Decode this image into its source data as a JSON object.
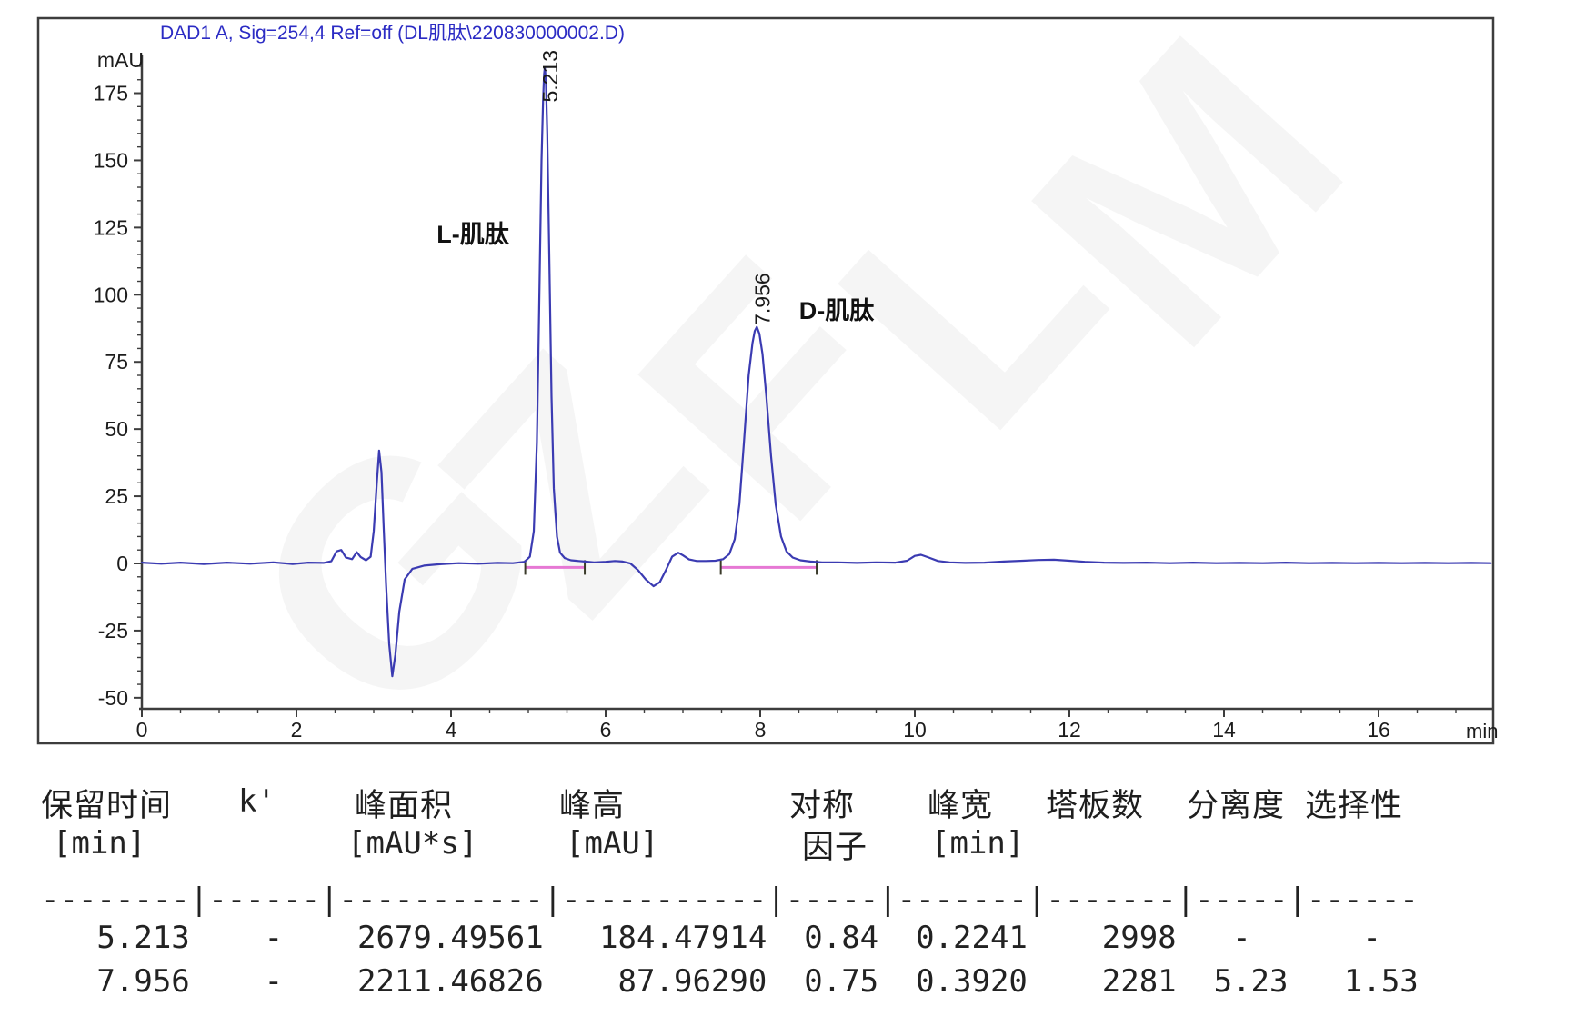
{
  "chart": {
    "title": "DAD1 A, Sig=254,4 Ref=off (DL肌肽\\220830000002.D)",
    "y_axis_unit": "mAU",
    "x_axis_unit": "min",
    "title_color": "#2b2bc4",
    "curve_color": "#3b3bb2",
    "integration_color": "#e678d4",
    "axis_color": "#3d3d3d"
  },
  "chart_data": {
    "type": "line",
    "title": "DAD1 A, Sig=254,4 Ref=off (DL肌肽\\220830000002.D)",
    "xlabel": "min",
    "ylabel": "mAU",
    "xlim": [
      0,
      17.5
    ],
    "ylim": [
      -54,
      189
    ],
    "x_ticks": [
      0,
      2,
      4,
      6,
      8,
      10,
      12,
      14,
      16
    ],
    "y_ticks": [
      175,
      150,
      125,
      100,
      75,
      50,
      25,
      0,
      -25,
      -50
    ],
    "grid": false,
    "legend_position": "none",
    "peaks": [
      {
        "rt": 5.213,
        "rt_label": "5.213",
        "name": "L-肌肽",
        "height": 184.47914,
        "area": 2679.49561
      },
      {
        "rt": 7.956,
        "rt_label": "7.956",
        "name": "D-肌肽",
        "height": 87.9629,
        "area": 2211.46826
      }
    ],
    "integration": {
      "segments": [
        [
          4.96,
          5.73
        ],
        [
          7.49,
          8.73
        ]
      ],
      "baseline_mAU": -1.5
    },
    "series": [
      {
        "name": "DAD1 A",
        "points": [
          [
            0,
            0.3
          ],
          [
            0.25,
            -0.1
          ],
          [
            0.5,
            0.3
          ],
          [
            0.8,
            -0.2
          ],
          [
            1.1,
            0.3
          ],
          [
            1.4,
            -0.1
          ],
          [
            1.7,
            0.4
          ],
          [
            1.95,
            -0.2
          ],
          [
            2.15,
            0.3
          ],
          [
            2.35,
            0.2
          ],
          [
            2.45,
            0.8
          ],
          [
            2.52,
            4.5
          ],
          [
            2.58,
            5
          ],
          [
            2.64,
            2.2
          ],
          [
            2.72,
            1.6
          ],
          [
            2.78,
            4.2
          ],
          [
            2.83,
            2.4
          ],
          [
            2.9,
            1.2
          ],
          [
            2.96,
            2.5
          ],
          [
            3.0,
            12
          ],
          [
            3.04,
            30
          ],
          [
            3.07,
            42
          ],
          [
            3.1,
            34
          ],
          [
            3.13,
            12
          ],
          [
            3.16,
            -8
          ],
          [
            3.2,
            -30
          ],
          [
            3.24,
            -42
          ],
          [
            3.28,
            -34
          ],
          [
            3.33,
            -18
          ],
          [
            3.4,
            -6
          ],
          [
            3.5,
            -2
          ],
          [
            3.65,
            -0.8
          ],
          [
            3.85,
            -0.3
          ],
          [
            4.1,
            0.1
          ],
          [
            4.35,
            -0.1
          ],
          [
            4.6,
            0.2
          ],
          [
            4.8,
            0.1
          ],
          [
            4.95,
            0.6
          ],
          [
            5.02,
            2.5
          ],
          [
            5.07,
            12
          ],
          [
            5.11,
            45
          ],
          [
            5.14,
            95
          ],
          [
            5.17,
            150
          ],
          [
            5.19,
            172
          ],
          [
            5.203,
            182
          ],
          [
            5.213,
            184.5
          ],
          [
            5.227,
            180
          ],
          [
            5.245,
            160
          ],
          [
            5.27,
            115
          ],
          [
            5.3,
            62
          ],
          [
            5.33,
            28
          ],
          [
            5.37,
            10
          ],
          [
            5.41,
            4
          ],
          [
            5.47,
            2
          ],
          [
            5.55,
            1.2
          ],
          [
            5.65,
            0.9
          ],
          [
            5.73,
            0.7
          ],
          [
            5.85,
            0.4
          ],
          [
            6.0,
            0.6
          ],
          [
            6.12,
            0.9
          ],
          [
            6.22,
            0.7
          ],
          [
            6.32,
            0
          ],
          [
            6.42,
            -2.5
          ],
          [
            6.52,
            -6
          ],
          [
            6.62,
            -8.5
          ],
          [
            6.7,
            -7
          ],
          [
            6.78,
            -2.5
          ],
          [
            6.86,
            2.5
          ],
          [
            6.94,
            4
          ],
          [
            7.0,
            3
          ],
          [
            7.08,
            1.5
          ],
          [
            7.18,
            0.9
          ],
          [
            7.3,
            0.9
          ],
          [
            7.42,
            1
          ],
          [
            7.52,
            1.6
          ],
          [
            7.6,
            3.5
          ],
          [
            7.67,
            9
          ],
          [
            7.73,
            22
          ],
          [
            7.79,
            45
          ],
          [
            7.85,
            70
          ],
          [
            7.9,
            82
          ],
          [
            7.93,
            86.5
          ],
          [
            7.956,
            88
          ],
          [
            7.99,
            85.5
          ],
          [
            8.03,
            78
          ],
          [
            8.08,
            62
          ],
          [
            8.14,
            40
          ],
          [
            8.2,
            22
          ],
          [
            8.27,
            10
          ],
          [
            8.34,
            4.5
          ],
          [
            8.42,
            2.2
          ],
          [
            8.52,
            1.2
          ],
          [
            8.65,
            0.7
          ],
          [
            8.8,
            0.4
          ],
          [
            9.0,
            0.4
          ],
          [
            9.25,
            0.2
          ],
          [
            9.5,
            0.4
          ],
          [
            9.75,
            0.3
          ],
          [
            9.9,
            1
          ],
          [
            10.0,
            2.8
          ],
          [
            10.08,
            3.2
          ],
          [
            10.18,
            2.2
          ],
          [
            10.3,
            0.9
          ],
          [
            10.45,
            0.4
          ],
          [
            10.65,
            0.2
          ],
          [
            10.9,
            0.3
          ],
          [
            11.15,
            0.7
          ],
          [
            11.4,
            1
          ],
          [
            11.6,
            1.3
          ],
          [
            11.8,
            1.4
          ],
          [
            12.0,
            1
          ],
          [
            12.2,
            0.6
          ],
          [
            12.45,
            0.3
          ],
          [
            12.7,
            0.2
          ],
          [
            13.0,
            0.3
          ],
          [
            13.3,
            0.1
          ],
          [
            13.6,
            0.3
          ],
          [
            13.9,
            0.1
          ],
          [
            14.2,
            0.2
          ],
          [
            14.5,
            0.1
          ],
          [
            14.8,
            0.3
          ],
          [
            15.1,
            0.1
          ],
          [
            15.4,
            0.2
          ],
          [
            15.7,
            0.1
          ],
          [
            16.0,
            0.2
          ],
          [
            16.3,
            0.1
          ],
          [
            16.6,
            0.2
          ],
          [
            16.9,
            0.1
          ],
          [
            17.2,
            0.2
          ],
          [
            17.45,
            0.1
          ]
        ]
      }
    ]
  },
  "table": {
    "headers": [
      {
        "label": "保留时间",
        "unit": "[min]"
      },
      {
        "label": "k'",
        "unit": ""
      },
      {
        "label": "峰面积",
        "unit": "[mAU*s]"
      },
      {
        "label": "峰高",
        "unit": "[mAU]"
      },
      {
        "label": "对称",
        "unit": "因子"
      },
      {
        "label": "峰宽",
        "unit": "[min]"
      },
      {
        "label": "塔板数",
        "unit": ""
      },
      {
        "label": "分离度",
        "unit": ""
      },
      {
        "label": "选择性",
        "unit": ""
      }
    ],
    "separator": "--------|------|-----------|-----------|-----|-------|-------|-----|------",
    "rows": [
      [
        "5.213",
        "-",
        "2679.49561",
        "184.47914",
        "0.84",
        "0.2241",
        "2998",
        "-",
        "-"
      ],
      [
        "7.956",
        "-",
        "2211.46826",
        "87.96290",
        "0.75",
        "0.3920",
        "2281",
        "5.23",
        "1.53"
      ]
    ],
    "rows_display": [
      "   5.213    -    2679.49561   184.47914  0.84  0.2241    2998   -      -",
      "   7.956    -    2211.46826    87.96290  0.75  0.3920    2281  5.23   1.53"
    ]
  },
  "watermark": {
    "letters": [
      "G",
      "Z",
      "F",
      "L",
      "M"
    ]
  }
}
